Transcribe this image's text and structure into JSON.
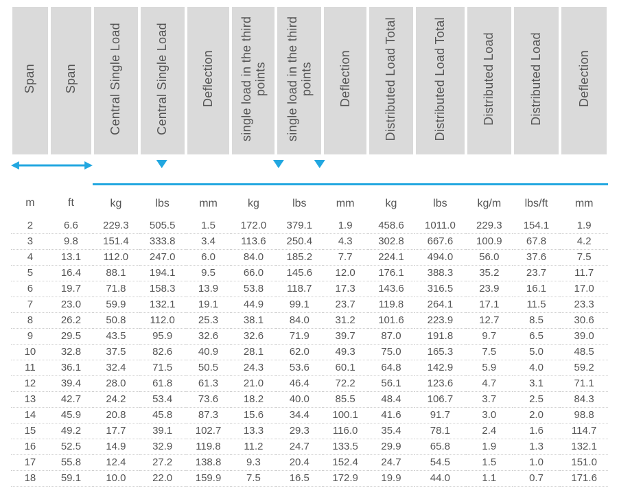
{
  "style": {
    "accent_color": "#22a7e0",
    "header_bg": "#dadada",
    "text_color": "#555555",
    "dotted_rule_color": "#cfcfcf",
    "font_family": "Arial, Helvetica, sans-serif",
    "header_fontsize_pt": 13,
    "units_fontsize_pt": 12,
    "data_fontsize_pt": 11
  },
  "columns": [
    {
      "key": "span_m",
      "label": "Span",
      "unit": "m",
      "group": "span"
    },
    {
      "key": "span_ft",
      "label": "Span",
      "unit": "ft",
      "group": "span"
    },
    {
      "key": "csl_kg",
      "label": "Central Single Load",
      "unit": "kg",
      "group": "central"
    },
    {
      "key": "csl_lbs",
      "label": "Central Single Load",
      "unit": "lbs",
      "group": "central"
    },
    {
      "key": "csl_def",
      "label": "Deflection",
      "unit": "mm",
      "group": "central"
    },
    {
      "key": "third_kg",
      "label": "single load in the third points",
      "unit": "kg",
      "group": "third"
    },
    {
      "key": "third_lbs",
      "label": "single load in the third points",
      "unit": "lbs",
      "group": "third"
    },
    {
      "key": "third_def",
      "label": "Deflection",
      "unit": "mm",
      "group": "third"
    },
    {
      "key": "dist_tot_kg",
      "label": "Distributed Load Total",
      "unit": "kg",
      "group": "dist"
    },
    {
      "key": "dist_tot_lbs",
      "label": "Distributed Load Total",
      "unit": "lbs",
      "group": "dist"
    },
    {
      "key": "dist_kgm",
      "label": "Distributed Load",
      "unit": "kg/m",
      "group": "dist"
    },
    {
      "key": "dist_lbsft",
      "label": "Distributed Load",
      "unit": "lbs/ft",
      "group": "dist"
    },
    {
      "key": "dist_def",
      "label": "Deflection",
      "unit": "mm",
      "group": "dist"
    }
  ],
  "groups": [
    "span",
    "central",
    "third",
    "dist"
  ],
  "rows": [
    [
      "2",
      "6.6",
      "229.3",
      "505.5",
      "1.5",
      "172.0",
      "379.1",
      "1.9",
      "458.6",
      "1011.0",
      "229.3",
      "154.1",
      "1.9"
    ],
    [
      "3",
      "9.8",
      "151.4",
      "333.8",
      "3.4",
      "113.6",
      "250.4",
      "4.3",
      "302.8",
      "667.6",
      "100.9",
      "67.8",
      "4.2"
    ],
    [
      "4",
      "13.1",
      "112.0",
      "247.0",
      "6.0",
      "84.0",
      "185.2",
      "7.7",
      "224.1",
      "494.0",
      "56.0",
      "37.6",
      "7.5"
    ],
    [
      "5",
      "16.4",
      "88.1",
      "194.1",
      "9.5",
      "66.0",
      "145.6",
      "12.0",
      "176.1",
      "388.3",
      "35.2",
      "23.7",
      "11.7"
    ],
    [
      "6",
      "19.7",
      "71.8",
      "158.3",
      "13.9",
      "53.8",
      "118.7",
      "17.3",
      "143.6",
      "316.5",
      "23.9",
      "16.1",
      "17.0"
    ],
    [
      "7",
      "23.0",
      "59.9",
      "132.1",
      "19.1",
      "44.9",
      "99.1",
      "23.7",
      "119.8",
      "264.1",
      "17.1",
      "11.5",
      "23.3"
    ],
    [
      "8",
      "26.2",
      "50.8",
      "112.0",
      "25.3",
      "38.1",
      "84.0",
      "31.2",
      "101.6",
      "223.9",
      "12.7",
      "8.5",
      "30.6"
    ],
    [
      "9",
      "29.5",
      "43.5",
      "95.9",
      "32.6",
      "32.6",
      "71.9",
      "39.7",
      "87.0",
      "191.8",
      "9.7",
      "6.5",
      "39.0"
    ],
    [
      "10",
      "32.8",
      "37.5",
      "82.6",
      "40.9",
      "28.1",
      "62.0",
      "49.3",
      "75.0",
      "165.3",
      "7.5",
      "5.0",
      "48.5"
    ],
    [
      "11",
      "36.1",
      "32.4",
      "71.5",
      "50.5",
      "24.3",
      "53.6",
      "60.1",
      "64.8",
      "142.9",
      "5.9",
      "4.0",
      "59.2"
    ],
    [
      "12",
      "39.4",
      "28.0",
      "61.8",
      "61.3",
      "21.0",
      "46.4",
      "72.2",
      "56.1",
      "123.6",
      "4.7",
      "3.1",
      "71.1"
    ],
    [
      "13",
      "42.7",
      "24.2",
      "53.4",
      "73.6",
      "18.2",
      "40.0",
      "85.5",
      "48.4",
      "106.7",
      "3.7",
      "2.5",
      "84.3"
    ],
    [
      "14",
      "45.9",
      "20.8",
      "45.8",
      "87.3",
      "15.6",
      "34.4",
      "100.1",
      "41.6",
      "91.7",
      "3.0",
      "2.0",
      "98.8"
    ],
    [
      "15",
      "49.2",
      "17.7",
      "39.1",
      "102.7",
      "13.3",
      "29.3",
      "116.0",
      "35.4",
      "78.1",
      "2.4",
      "1.6",
      "114.7"
    ],
    [
      "16",
      "52.5",
      "14.9",
      "32.9",
      "119.8",
      "11.2",
      "24.7",
      "133.5",
      "29.9",
      "65.8",
      "1.9",
      "1.3",
      "132.1"
    ],
    [
      "17",
      "55.8",
      "12.4",
      "27.2",
      "138.8",
      "9.3",
      "20.4",
      "152.4",
      "24.7",
      "54.5",
      "1.5",
      "1.0",
      "151.0"
    ],
    [
      "18",
      "59.1",
      "10.0",
      "22.0",
      "159.9",
      "7.5",
      "16.5",
      "172.9",
      "19.9",
      "44.0",
      "1.1",
      "0.7",
      "171.6"
    ]
  ],
  "icons": {
    "span": "double-arrow",
    "central": "single-point-load",
    "third": "two-point-load",
    "dist": "distributed-line"
  }
}
